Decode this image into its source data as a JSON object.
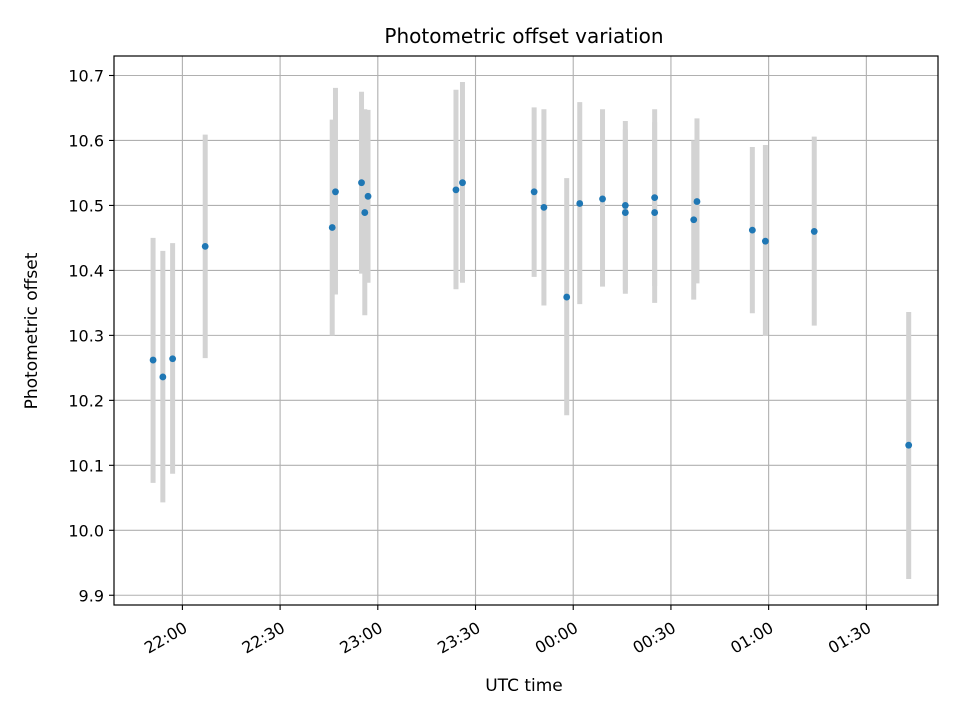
{
  "chart_data": {
    "type": "scatter",
    "title": "Photometric offset variation",
    "xlabel": "UTC time",
    "ylabel": "Photometric offset",
    "grid": true,
    "x_scale": "time",
    "xlim": [
      "21:39",
      "01:52"
    ],
    "ylim": [
      9.885,
      10.73
    ],
    "x_ticks": [
      "22:00",
      "22:30",
      "23:00",
      "23:30",
      "00:00",
      "00:30",
      "01:00",
      "01:30"
    ],
    "y_ticks": [
      9.9,
      10.0,
      10.1,
      10.2,
      10.3,
      10.4,
      10.5,
      10.6,
      10.7
    ],
    "colors": {
      "points": "#1f77b4",
      "error_bars": "#d3d3d3",
      "grid": "#b0b0b0"
    },
    "points": [
      {
        "time": "21:51",
        "y": 10.262,
        "low": 10.073,
        "high": 10.45
      },
      {
        "time": "21:54",
        "y": 10.236,
        "low": 10.043,
        "high": 10.43
      },
      {
        "time": "21:57",
        "y": 10.264,
        "low": 10.087,
        "high": 10.442
      },
      {
        "time": "22:07",
        "y": 10.437,
        "low": 10.265,
        "high": 10.609
      },
      {
        "time": "22:46",
        "y": 10.466,
        "low": 10.3,
        "high": 10.632
      },
      {
        "time": "22:47",
        "y": 10.521,
        "low": 10.363,
        "high": 10.681
      },
      {
        "time": "22:55",
        "y": 10.535,
        "low": 10.395,
        "high": 10.675
      },
      {
        "time": "22:56",
        "y": 10.489,
        "low": 10.331,
        "high": 10.648
      },
      {
        "time": "22:57",
        "y": 10.514,
        "low": 10.381,
        "high": 10.647
      },
      {
        "time": "23:24",
        "y": 10.524,
        "low": 10.371,
        "high": 10.678
      },
      {
        "time": "23:26",
        "y": 10.535,
        "low": 10.381,
        "high": 10.69
      },
      {
        "time": "23:48",
        "y": 10.521,
        "low": 10.39,
        "high": 10.651
      },
      {
        "time": "23:51",
        "y": 10.497,
        "low": 10.346,
        "high": 10.648
      },
      {
        "time": "23:58",
        "y": 10.359,
        "low": 10.177,
        "high": 10.542
      },
      {
        "time": "00:02",
        "y": 10.503,
        "low": 10.348,
        "high": 10.659
      },
      {
        "time": "00:09",
        "y": 10.51,
        "low": 10.375,
        "high": 10.648
      },
      {
        "time": "00:16",
        "y": 10.5,
        "low": 10.37,
        "high": 10.63
      },
      {
        "time": "00:16",
        "y": 10.489,
        "low": 10.364,
        "high": 10.617
      },
      {
        "time": "00:25",
        "y": 10.512,
        "low": 10.376,
        "high": 10.648
      },
      {
        "time": "00:25",
        "y": 10.489,
        "low": 10.35,
        "high": 10.628
      },
      {
        "time": "00:37",
        "y": 10.478,
        "low": 10.355,
        "high": 10.6
      },
      {
        "time": "00:38",
        "y": 10.506,
        "low": 10.38,
        "high": 10.634
      },
      {
        "time": "00:55",
        "y": 10.462,
        "low": 10.334,
        "high": 10.59
      },
      {
        "time": "00:59",
        "y": 10.445,
        "low": 10.299,
        "high": 10.593
      },
      {
        "time": "01:14",
        "y": 10.46,
        "low": 10.315,
        "high": 10.606
      },
      {
        "time": "01:43",
        "y": 10.131,
        "low": 9.925,
        "high": 10.336
      }
    ]
  }
}
